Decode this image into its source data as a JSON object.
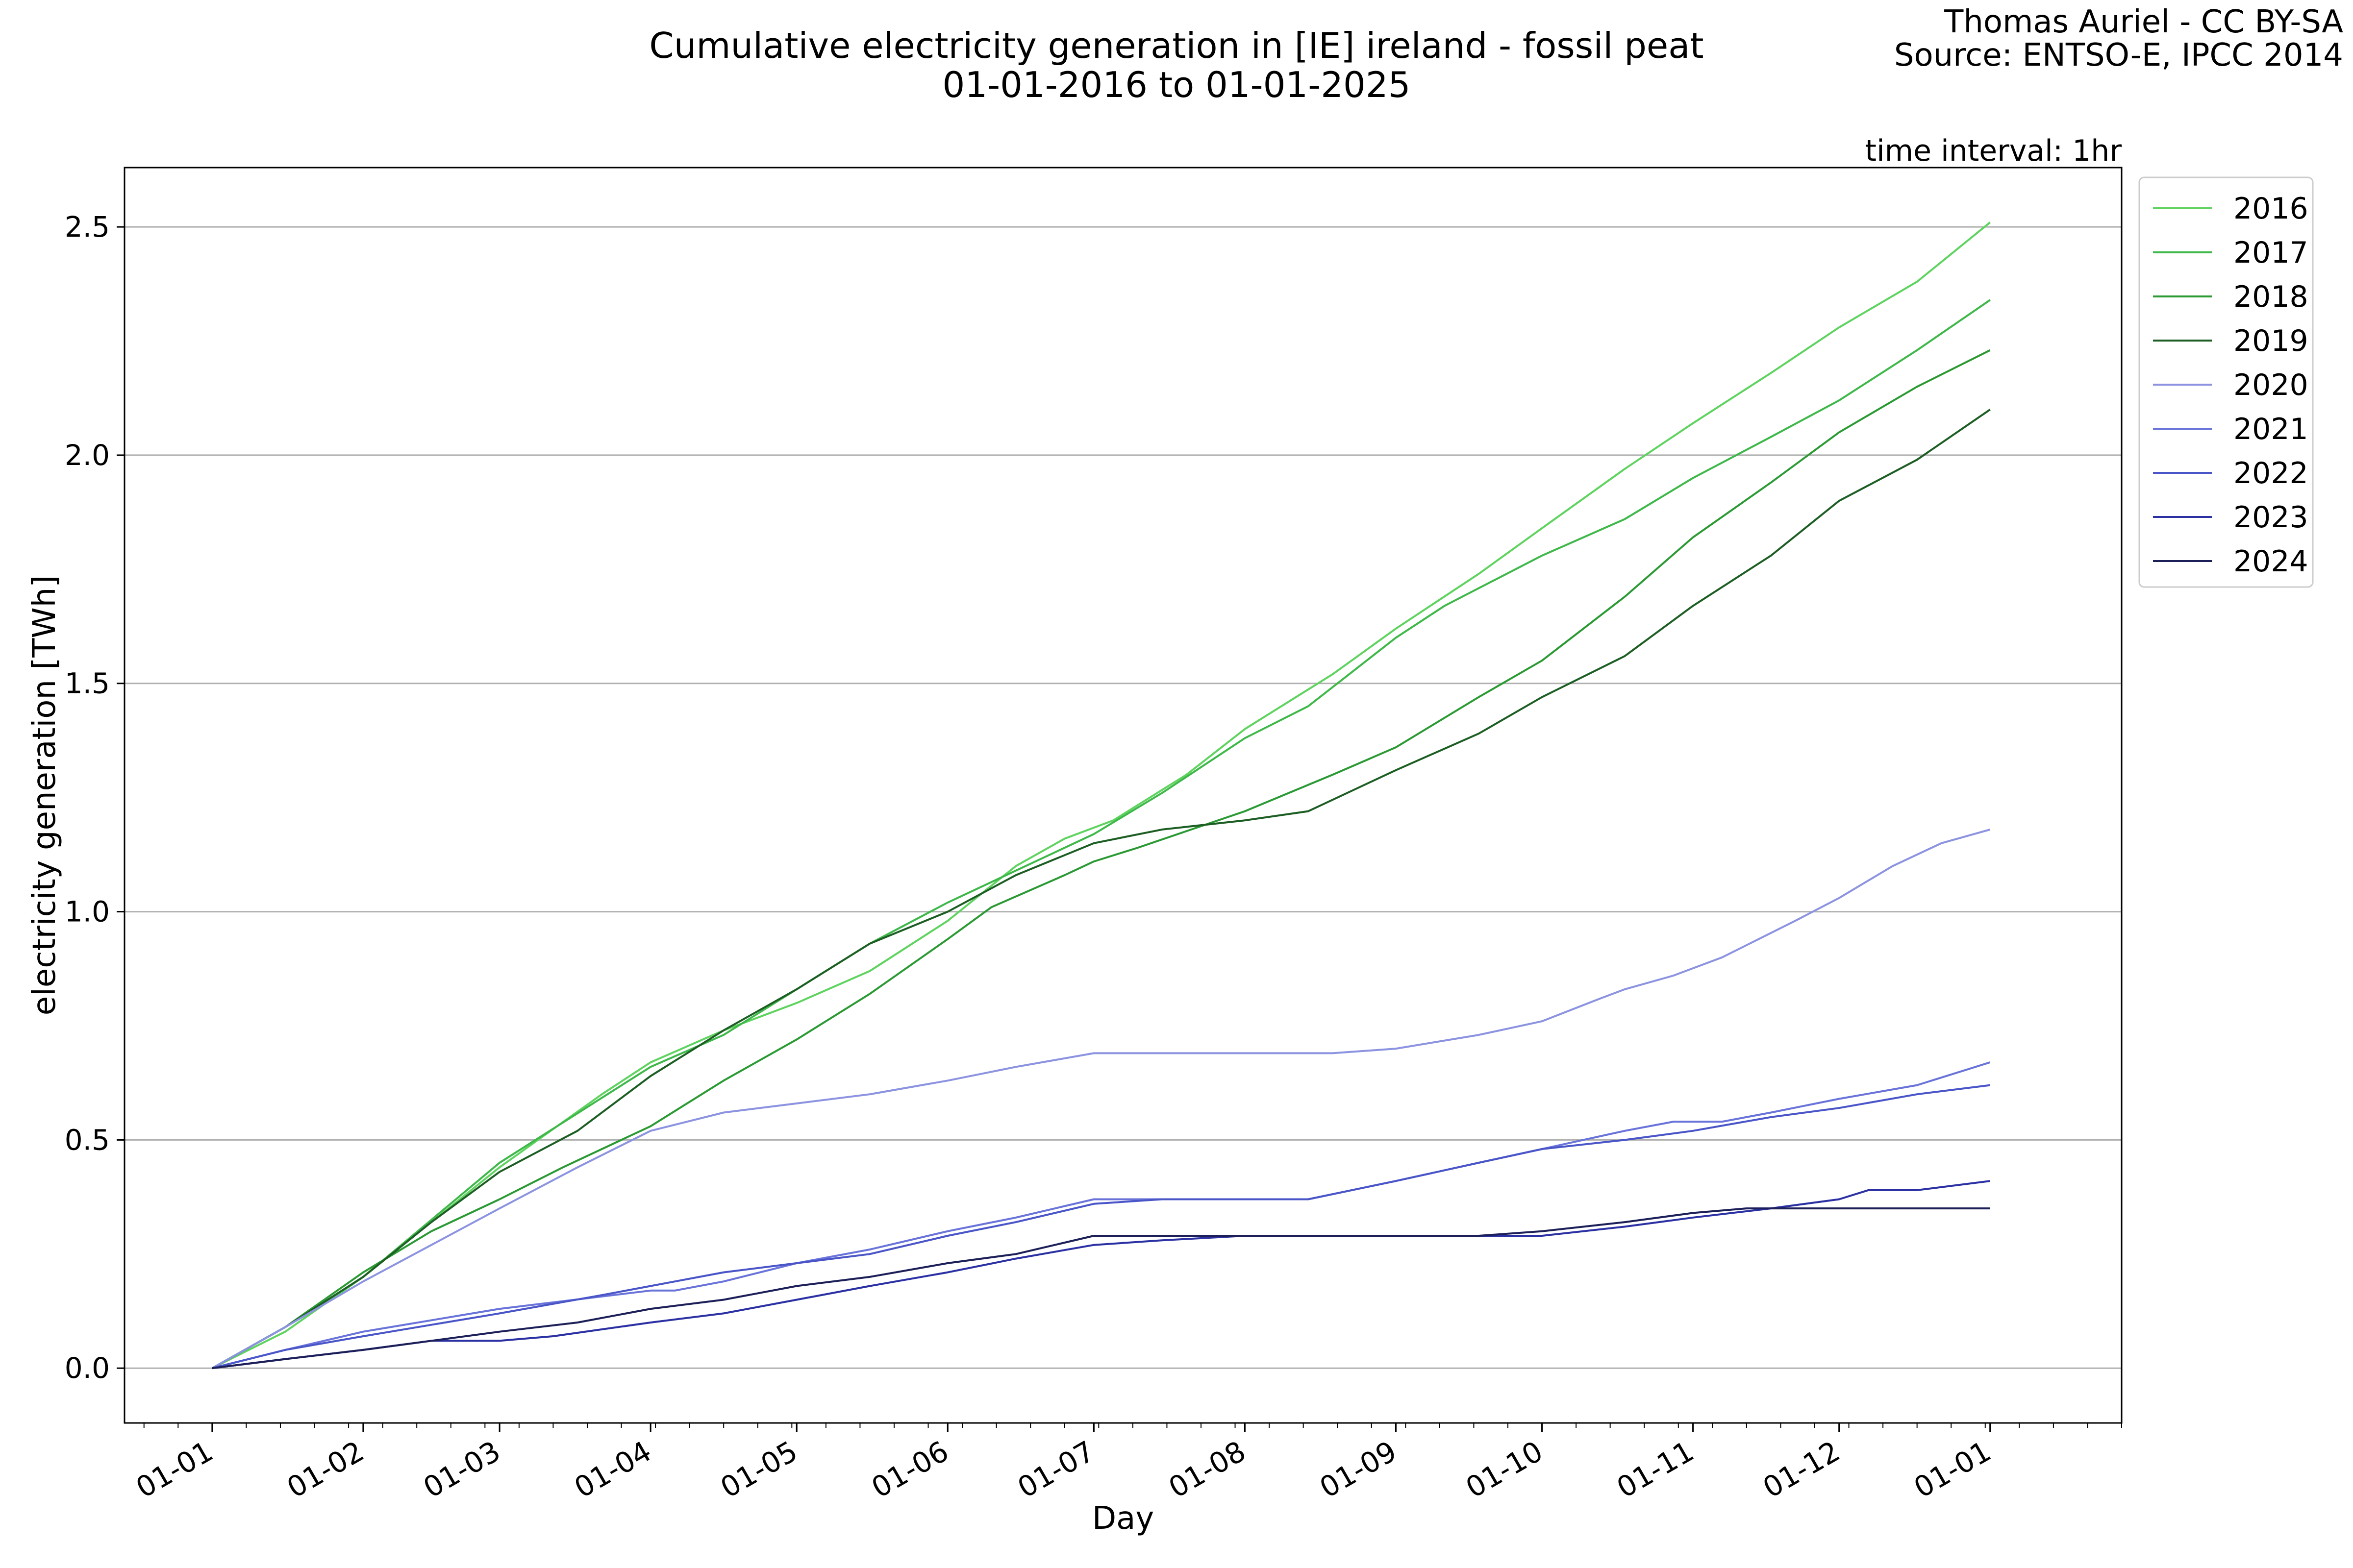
{
  "title_line1": "Cumulative electricity generation in [IE] ireland - fossil peat",
  "title_line2": "01-01-2016 to 01-01-2025",
  "credit_line1": "Thomas Auriel - CC BY-SA",
  "credit_line2": "Source: ENTSO-E, IPCC 2014",
  "time_interval": "time interval: 1hr",
  "chart_data": {
    "type": "line",
    "xlabel": "Day",
    "ylabel": "electricity generation [TWh]",
    "x_ticks": [
      "01-01",
      "01-02",
      "01-03",
      "01-04",
      "01-05",
      "01-06",
      "01-07",
      "01-08",
      "01-09",
      "01-10",
      "01-11",
      "01-12",
      "01-01"
    ],
    "x_tick_days": [
      0,
      31,
      59,
      90,
      120,
      151,
      181,
      212,
      243,
      273,
      304,
      334,
      365
    ],
    "xlim": [
      -18,
      392
    ],
    "y_ticks": [
      "0.0",
      "0.5",
      "1.0",
      "1.5",
      "2.0",
      "2.5"
    ],
    "y_tick_values": [
      0,
      0.5,
      1.0,
      1.5,
      2.0,
      2.5
    ],
    "ylim": [
      -0.12,
      2.63
    ],
    "grid": "horizontal",
    "legend_position": "outside-top-right",
    "x_unit": "day of year",
    "series": [
      {
        "name": "2016",
        "color": "#5fd35f",
        "points": [
          [
            0,
            0
          ],
          [
            15,
            0.08
          ],
          [
            31,
            0.2
          ],
          [
            59,
            0.44
          ],
          [
            80,
            0.6
          ],
          [
            90,
            0.67
          ],
          [
            105,
            0.74
          ],
          [
            120,
            0.8
          ],
          [
            135,
            0.87
          ],
          [
            151,
            0.98
          ],
          [
            165,
            1.1
          ],
          [
            175,
            1.16
          ],
          [
            185,
            1.2
          ],
          [
            200,
            1.3
          ],
          [
            212,
            1.4
          ],
          [
            230,
            1.52
          ],
          [
            243,
            1.62
          ],
          [
            260,
            1.74
          ],
          [
            273,
            1.84
          ],
          [
            290,
            1.97
          ],
          [
            304,
            2.07
          ],
          [
            320,
            2.18
          ],
          [
            334,
            2.28
          ],
          [
            350,
            2.38
          ],
          [
            365,
            2.51
          ]
        ]
      },
      {
        "name": "2017",
        "color": "#3fb84a",
        "points": [
          [
            0,
            0
          ],
          [
            15,
            0.09
          ],
          [
            31,
            0.2
          ],
          [
            59,
            0.45
          ],
          [
            90,
            0.66
          ],
          [
            105,
            0.73
          ],
          [
            120,
            0.83
          ],
          [
            135,
            0.93
          ],
          [
            151,
            1.02
          ],
          [
            165,
            1.09
          ],
          [
            181,
            1.17
          ],
          [
            195,
            1.26
          ],
          [
            212,
            1.38
          ],
          [
            225,
            1.45
          ],
          [
            243,
            1.6
          ],
          [
            253,
            1.67
          ],
          [
            273,
            1.78
          ],
          [
            290,
            1.86
          ],
          [
            304,
            1.95
          ],
          [
            320,
            2.04
          ],
          [
            334,
            2.12
          ],
          [
            350,
            2.23
          ],
          [
            365,
            2.34
          ]
        ]
      },
      {
        "name": "2018",
        "color": "#2b9a34",
        "points": [
          [
            0,
            0
          ],
          [
            15,
            0.09
          ],
          [
            31,
            0.21
          ],
          [
            45,
            0.3
          ],
          [
            59,
            0.37
          ],
          [
            72,
            0.44
          ],
          [
            90,
            0.53
          ],
          [
            105,
            0.63
          ],
          [
            120,
            0.72
          ],
          [
            135,
            0.82
          ],
          [
            151,
            0.94
          ],
          [
            160,
            1.01
          ],
          [
            175,
            1.08
          ],
          [
            181,
            1.11
          ],
          [
            190,
            1.14
          ],
          [
            212,
            1.22
          ],
          [
            230,
            1.3
          ],
          [
            243,
            1.36
          ],
          [
            260,
            1.47
          ],
          [
            273,
            1.55
          ],
          [
            290,
            1.69
          ],
          [
            304,
            1.82
          ],
          [
            320,
            1.94
          ],
          [
            334,
            2.05
          ],
          [
            350,
            2.15
          ],
          [
            365,
            2.23
          ]
        ]
      },
      {
        "name": "2019",
        "color": "#1d5e24",
        "points": [
          [
            0,
            0
          ],
          [
            15,
            0.09
          ],
          [
            31,
            0.2
          ],
          [
            45,
            0.32
          ],
          [
            59,
            0.43
          ],
          [
            75,
            0.52
          ],
          [
            90,
            0.64
          ],
          [
            105,
            0.74
          ],
          [
            120,
            0.83
          ],
          [
            135,
            0.93
          ],
          [
            151,
            1.0
          ],
          [
            165,
            1.08
          ],
          [
            181,
            1.15
          ],
          [
            195,
            1.18
          ],
          [
            212,
            1.2
          ],
          [
            225,
            1.22
          ],
          [
            235,
            1.27
          ],
          [
            243,
            1.31
          ],
          [
            260,
            1.39
          ],
          [
            273,
            1.47
          ],
          [
            290,
            1.56
          ],
          [
            304,
            1.67
          ],
          [
            320,
            1.78
          ],
          [
            334,
            1.9
          ],
          [
            350,
            1.99
          ],
          [
            365,
            2.1
          ]
        ]
      },
      {
        "name": "2020",
        "color": "#8c93e0",
        "points": [
          [
            0,
            0
          ],
          [
            15,
            0.09
          ],
          [
            31,
            0.19
          ],
          [
            45,
            0.27
          ],
          [
            59,
            0.35
          ],
          [
            75,
            0.44
          ],
          [
            90,
            0.52
          ],
          [
            105,
            0.56
          ],
          [
            120,
            0.58
          ],
          [
            135,
            0.6
          ],
          [
            151,
            0.63
          ],
          [
            165,
            0.66
          ],
          [
            181,
            0.69
          ],
          [
            195,
            0.69
          ],
          [
            212,
            0.69
          ],
          [
            230,
            0.69
          ],
          [
            243,
            0.7
          ],
          [
            260,
            0.73
          ],
          [
            273,
            0.76
          ],
          [
            285,
            0.81
          ],
          [
            290,
            0.83
          ],
          [
            300,
            0.86
          ],
          [
            310,
            0.9
          ],
          [
            325,
            0.98
          ],
          [
            334,
            1.03
          ],
          [
            345,
            1.1
          ],
          [
            355,
            1.15
          ],
          [
            365,
            1.18
          ]
        ]
      },
      {
        "name": "2021",
        "color": "#6973d9",
        "points": [
          [
            0,
            0
          ],
          [
            15,
            0.04
          ],
          [
            31,
            0.08
          ],
          [
            59,
            0.13
          ],
          [
            90,
            0.17
          ],
          [
            95,
            0.17
          ],
          [
            105,
            0.19
          ],
          [
            120,
            0.23
          ],
          [
            135,
            0.26
          ],
          [
            151,
            0.3
          ],
          [
            165,
            0.33
          ],
          [
            181,
            0.37
          ],
          [
            195,
            0.37
          ],
          [
            212,
            0.37
          ],
          [
            225,
            0.37
          ],
          [
            243,
            0.41
          ],
          [
            260,
            0.45
          ],
          [
            273,
            0.48
          ],
          [
            290,
            0.52
          ],
          [
            300,
            0.54
          ],
          [
            310,
            0.54
          ],
          [
            320,
            0.56
          ],
          [
            334,
            0.59
          ],
          [
            350,
            0.62
          ],
          [
            365,
            0.67
          ]
        ]
      },
      {
        "name": "2022",
        "color": "#4a55c8",
        "points": [
          [
            0,
            0
          ],
          [
            15,
            0.04
          ],
          [
            31,
            0.07
          ],
          [
            59,
            0.12
          ],
          [
            80,
            0.16
          ],
          [
            90,
            0.18
          ],
          [
            105,
            0.21
          ],
          [
            120,
            0.23
          ],
          [
            135,
            0.25
          ],
          [
            151,
            0.29
          ],
          [
            165,
            0.32
          ],
          [
            181,
            0.36
          ],
          [
            195,
            0.37
          ],
          [
            212,
            0.37
          ],
          [
            225,
            0.37
          ],
          [
            243,
            0.41
          ],
          [
            260,
            0.45
          ],
          [
            273,
            0.48
          ],
          [
            290,
            0.5
          ],
          [
            304,
            0.52
          ],
          [
            320,
            0.55
          ],
          [
            334,
            0.57
          ],
          [
            350,
            0.6
          ],
          [
            365,
            0.62
          ]
        ]
      },
      {
        "name": "2023",
        "color": "#2b31a3",
        "points": [
          [
            0,
            0
          ],
          [
            15,
            0.02
          ],
          [
            31,
            0.04
          ],
          [
            45,
            0.06
          ],
          [
            55,
            0.06
          ],
          [
            59,
            0.06
          ],
          [
            70,
            0.07
          ],
          [
            90,
            0.1
          ],
          [
            105,
            0.12
          ],
          [
            120,
            0.15
          ],
          [
            135,
            0.18
          ],
          [
            151,
            0.21
          ],
          [
            165,
            0.24
          ],
          [
            181,
            0.27
          ],
          [
            195,
            0.28
          ],
          [
            212,
            0.29
          ],
          [
            230,
            0.29
          ],
          [
            243,
            0.29
          ],
          [
            260,
            0.29
          ],
          [
            273,
            0.29
          ],
          [
            290,
            0.31
          ],
          [
            304,
            0.33
          ],
          [
            320,
            0.35
          ],
          [
            334,
            0.37
          ],
          [
            340,
            0.39
          ],
          [
            350,
            0.39
          ],
          [
            365,
            0.41
          ]
        ]
      },
      {
        "name": "2024",
        "color": "#1c1f58",
        "points": [
          [
            0,
            0
          ],
          [
            15,
            0.02
          ],
          [
            31,
            0.04
          ],
          [
            45,
            0.06
          ],
          [
            59,
            0.08
          ],
          [
            75,
            0.1
          ],
          [
            90,
            0.13
          ],
          [
            105,
            0.15
          ],
          [
            120,
            0.18
          ],
          [
            135,
            0.2
          ],
          [
            151,
            0.23
          ],
          [
            165,
            0.25
          ],
          [
            181,
            0.29
          ],
          [
            195,
            0.29
          ],
          [
            212,
            0.29
          ],
          [
            230,
            0.29
          ],
          [
            243,
            0.29
          ],
          [
            260,
            0.29
          ],
          [
            273,
            0.3
          ],
          [
            290,
            0.32
          ],
          [
            304,
            0.34
          ],
          [
            315,
            0.35
          ],
          [
            320,
            0.35
          ],
          [
            334,
            0.35
          ],
          [
            350,
            0.35
          ],
          [
            365,
            0.35
          ]
        ]
      }
    ]
  }
}
